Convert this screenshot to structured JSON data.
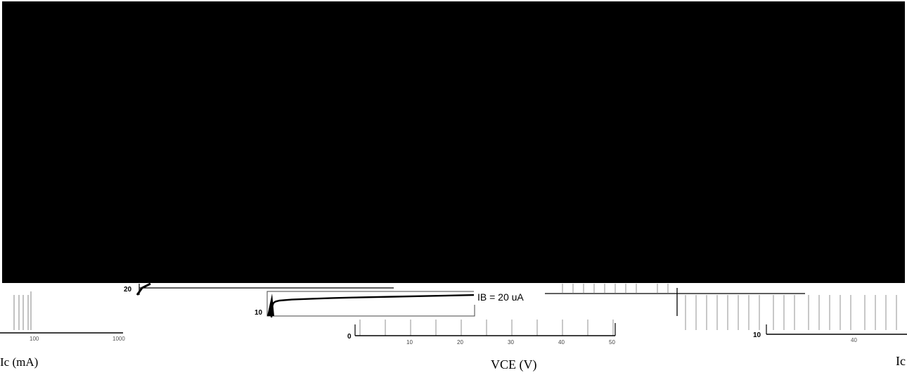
{
  "chart_data": {
    "type": "line",
    "title": "",
    "xlabel": "VCE (V)",
    "ylabel_left": "Ic (mA)",
    "ylabel_right": "Ic",
    "left_tick_labels": [
      "20",
      "10"
    ],
    "center_y_ticks": [
      "10",
      "0"
    ],
    "right_y_ticks": [
      "10"
    ],
    "x_tick_labels_visible": [
      "100",
      "1000",
      "10",
      "20",
      "30",
      "40",
      "50",
      "40"
    ],
    "series": [
      {
        "name": "IB = 20 uA",
        "x": [
          0.0,
          0.2,
          0.5,
          1.0,
          2.0,
          5.0,
          10.0,
          15.0,
          20.0,
          30.0,
          40.0,
          50.0
        ],
        "y": [
          0.0,
          6.5,
          8.6,
          9.4,
          10.0,
          10.6,
          11.1,
          11.5,
          11.8,
          12.3,
          12.8,
          13.3
        ]
      }
    ],
    "xlim": [
      0,
      50
    ],
    "ylim": [
      0,
      20
    ],
    "grid": true,
    "legend": "inline-right"
  },
  "overlay": {
    "color": "#000000"
  }
}
